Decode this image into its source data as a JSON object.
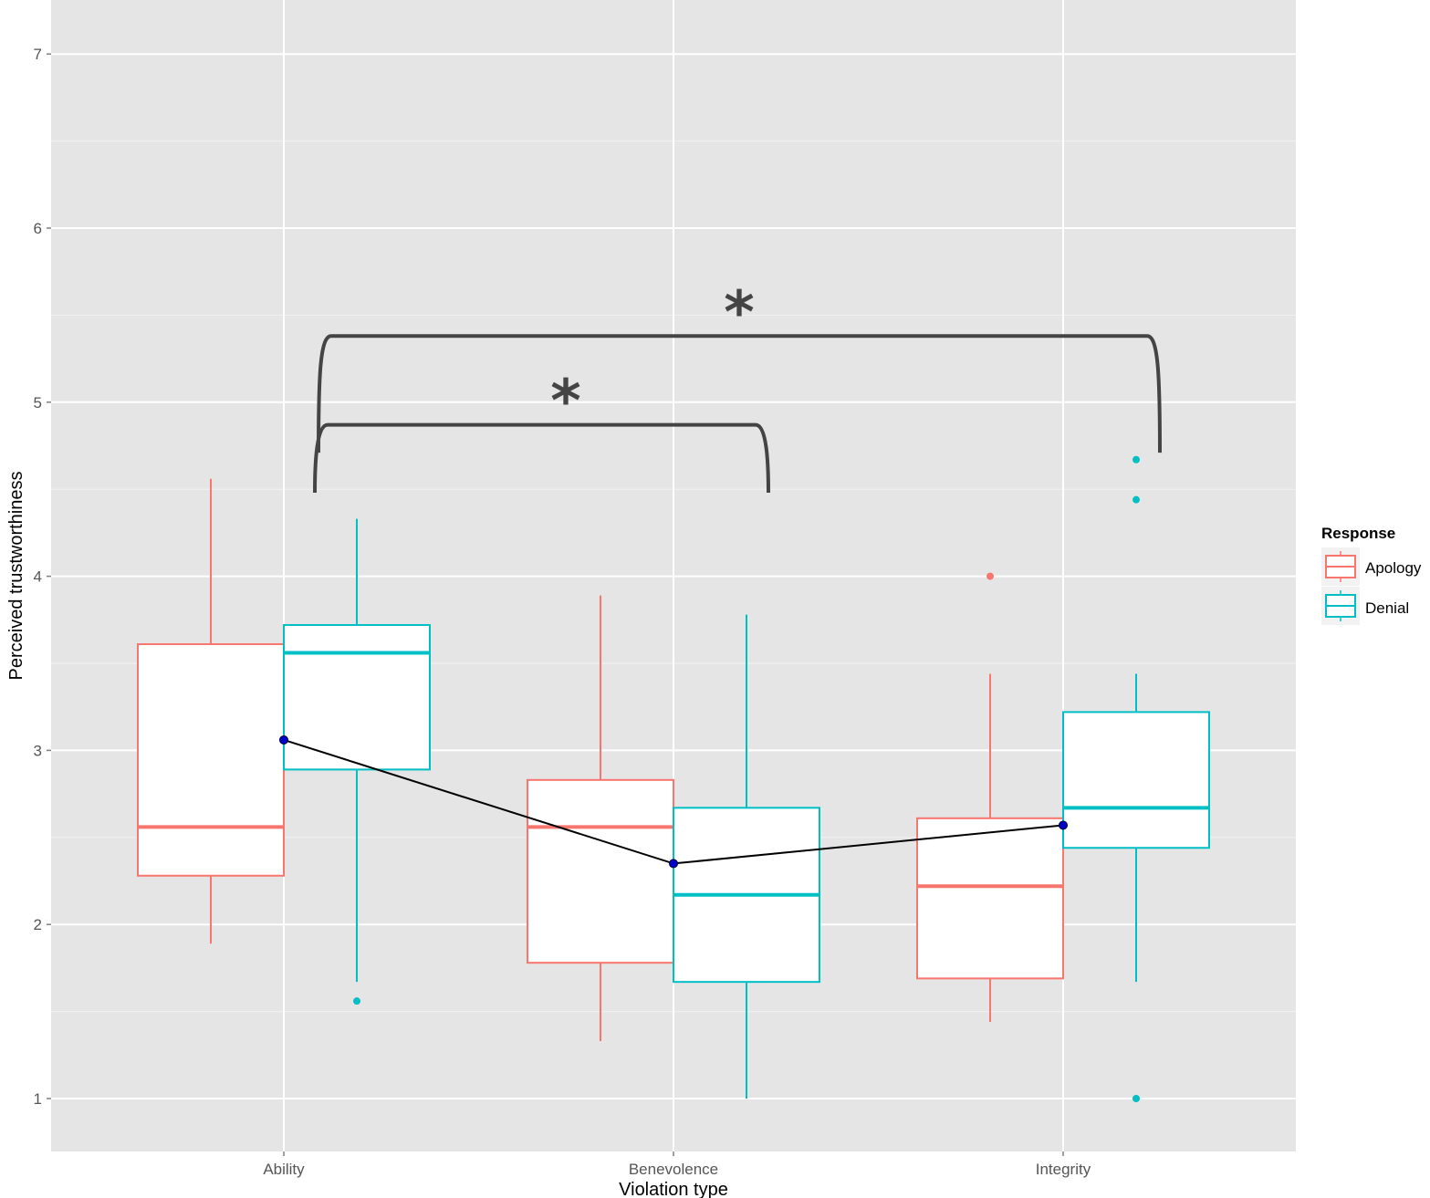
{
  "chart_data": {
    "type": "box",
    "title": "",
    "xlabel": "Violation type",
    "ylabel": "Perceived trustworthiness",
    "categories": [
      "Ability",
      "Benevolence",
      "Integrity"
    ],
    "ylim": [
      0.7,
      7.3
    ],
    "yticks": [
      1,
      2,
      3,
      4,
      5,
      6,
      7
    ],
    "grid": true,
    "legend": {
      "title": "Response",
      "position": "right",
      "entries": [
        "Apology",
        "Denial"
      ]
    },
    "colors": {
      "Apology": "#f8766d",
      "Denial": "#00bfc4",
      "panel": "#e5e5e5",
      "grid": "#ffffff",
      "mean_line": "#000000",
      "mean_point": "#0000cc",
      "bracket": "#444444"
    },
    "series": [
      {
        "name": "Apology",
        "boxes": [
          {
            "category": "Ability",
            "whisker_low": 1.89,
            "q1": 2.28,
            "median": 2.56,
            "q3": 3.61,
            "whisker_high": 4.56,
            "outliers": []
          },
          {
            "category": "Benevolence",
            "whisker_low": 1.33,
            "q1": 1.78,
            "median": 2.56,
            "q3": 2.83,
            "whisker_high": 3.89,
            "outliers": []
          },
          {
            "category": "Integrity",
            "whisker_low": 1.44,
            "q1": 1.69,
            "median": 2.22,
            "q3": 2.61,
            "whisker_high": 3.44,
            "outliers": [
              4.0
            ]
          }
        ]
      },
      {
        "name": "Denial",
        "boxes": [
          {
            "category": "Ability",
            "whisker_low": 1.67,
            "q1": 2.89,
            "median": 3.56,
            "q3": 3.72,
            "whisker_high": 4.33,
            "outliers": [
              1.56
            ]
          },
          {
            "category": "Benevolence",
            "whisker_low": 1.0,
            "q1": 1.67,
            "median": 2.17,
            "q3": 2.67,
            "whisker_high": 3.78,
            "outliers": []
          },
          {
            "category": "Integrity",
            "whisker_low": 1.67,
            "q1": 2.44,
            "median": 2.67,
            "q3": 3.22,
            "whisker_high": 3.44,
            "outliers": [
              4.67,
              4.44,
              1.0
            ]
          }
        ]
      }
    ],
    "means": [
      {
        "category": "Ability",
        "value": 3.06
      },
      {
        "category": "Benevolence",
        "value": 2.35
      },
      {
        "category": "Integrity",
        "value": 2.57
      }
    ],
    "annotations": [
      {
        "from": "Ability",
        "to": "Benevolence",
        "label": "*"
      },
      {
        "from": "Ability",
        "to": "Integrity",
        "label": "*"
      }
    ]
  }
}
